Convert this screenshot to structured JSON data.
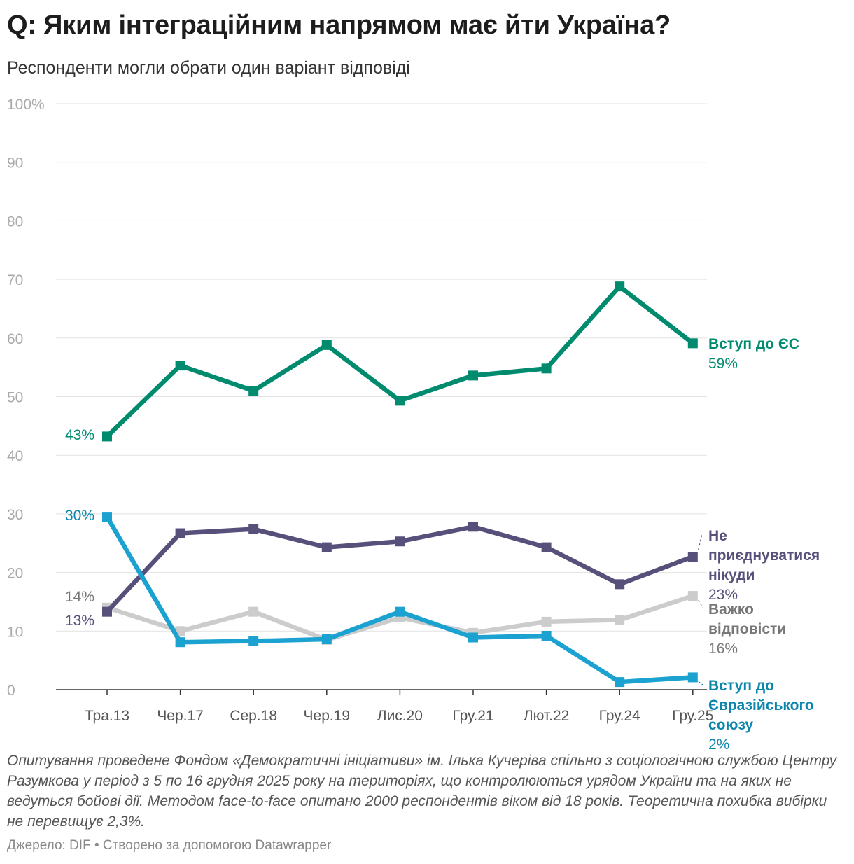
{
  "title": "Q: Яким інтеграційним напрямом має йти Україна?",
  "subtitle": "Респонденти могли обрати один варіант відповіді",
  "notes": "Опитування проведене Фондом «Демократичні ініціативи» ім. Ілька Кучеріва спільно з соціологічною службою Центру Разумкова у період з 5 по 16 грудня 2025 року на територіях, що контролюються урядом України та на яких не ведуться бойові дії. Методом face-to-face опитано 2000 респондентів віком від 18 років. Теоретична похибка вибірки не перевищує 2,3%.",
  "source": "Джерело: DIF • Створено за допомогою Datawrapper",
  "chart_data": {
    "type": "line",
    "title": "Q: Яким інтеграційним напрямом має йти Україна?",
    "categories": [
      "Тра.13",
      "Чер.17",
      "Сер.18",
      "Чер.19",
      "Лис.20",
      "Гру.21",
      "Лют.22",
      "Гру.24",
      "Гру.25"
    ],
    "ylim": [
      0,
      100
    ],
    "yticks": [
      0,
      10,
      20,
      30,
      40,
      50,
      60,
      70,
      80,
      90,
      100
    ],
    "ytick_labels": [
      "0",
      "10",
      "20",
      "30",
      "40",
      "50",
      "60",
      "70",
      "80",
      "90",
      "100%"
    ],
    "grid": true,
    "series": [
      {
        "name": "Важко відповісти",
        "name_lines": [
          "Важко",
          "відповісти"
        ],
        "color": "#cccccc",
        "label_color": "#777777",
        "values": [
          14,
          10,
          13.3,
          8.5,
          12.3,
          9.7,
          11.6,
          11.9,
          16
        ],
        "start_label": "14%",
        "end_label": "16%"
      },
      {
        "name": "Не приєднуватися нікуди",
        "name_lines": [
          "Не",
          "приєднуватися",
          "нікуди"
        ],
        "color": "#56507a",
        "label_color": "#56507a",
        "values": [
          13.3,
          26.7,
          27.4,
          24.3,
          25.3,
          27.8,
          24.3,
          18,
          22.7
        ],
        "start_label": "13%",
        "end_label": "23%"
      },
      {
        "name": "Вступ до Євразійського союзу",
        "name_lines": [
          "Вступ до",
          "Євразійського",
          "союзу"
        ],
        "color": "#1ba2d0",
        "label_color": "#0c86ad",
        "values": [
          29.5,
          8.1,
          8.3,
          8.6,
          13.3,
          8.9,
          9.2,
          1.3,
          2.1
        ],
        "start_label": "30%",
        "end_label": "2%"
      },
      {
        "name": "Вступ до ЄС",
        "name_lines": [
          "Вступ до ЄС"
        ],
        "color": "#008b6f",
        "label_color": "#008b6f",
        "values": [
          43.2,
          55.3,
          51,
          58.8,
          49.3,
          53.6,
          54.8,
          68.8,
          59.1
        ],
        "start_label": "43%",
        "end_label": "59%"
      }
    ]
  }
}
